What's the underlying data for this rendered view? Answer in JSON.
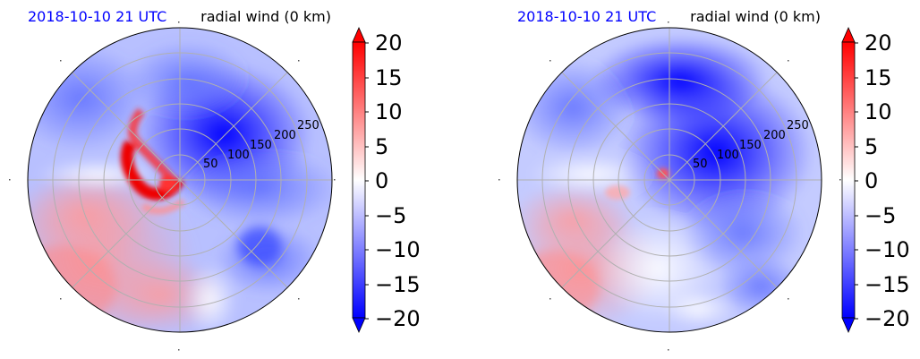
{
  "chart_data": [
    {
      "type": "polar-filled-contour",
      "title_left": "2018-10-10 21 UTC",
      "title_right": "radial wind (0 km)",
      "r_ticks": [
        "50",
        "100",
        "150",
        "200",
        "250"
      ],
      "r_max": 300,
      "angular_grid_deg": [
        0,
        45,
        90,
        135,
        180,
        225,
        270,
        315
      ],
      "grid": true,
      "colorbar": {
        "min": -20,
        "max": 20,
        "extend": "both",
        "ticks": [
          "20",
          "15",
          "10",
          "5",
          "0",
          "−5",
          "−10",
          "−15",
          "−20"
        ],
        "colormap": "bwr",
        "low_color": "#0000ff",
        "high_color": "#ff0000",
        "mid_color": "#ffffff"
      }
    },
    {
      "type": "polar-filled-contour",
      "title_left": "2018-10-10 21 UTC",
      "title_right": "radial wind (0 km)",
      "r_ticks": [
        "50",
        "100",
        "150",
        "200",
        "250"
      ],
      "r_max": 300,
      "angular_grid_deg": [
        0,
        45,
        90,
        135,
        180,
        225,
        270,
        315
      ],
      "grid": true,
      "colorbar": {
        "min": -20,
        "max": 20,
        "extend": "both",
        "ticks": [
          "20",
          "15",
          "10",
          "5",
          "0",
          "−5",
          "−10",
          "−15",
          "−20"
        ],
        "colormap": "bwr",
        "low_color": "#0000ff",
        "high_color": "#ff0000",
        "mid_color": "#ffffff"
      }
    }
  ]
}
